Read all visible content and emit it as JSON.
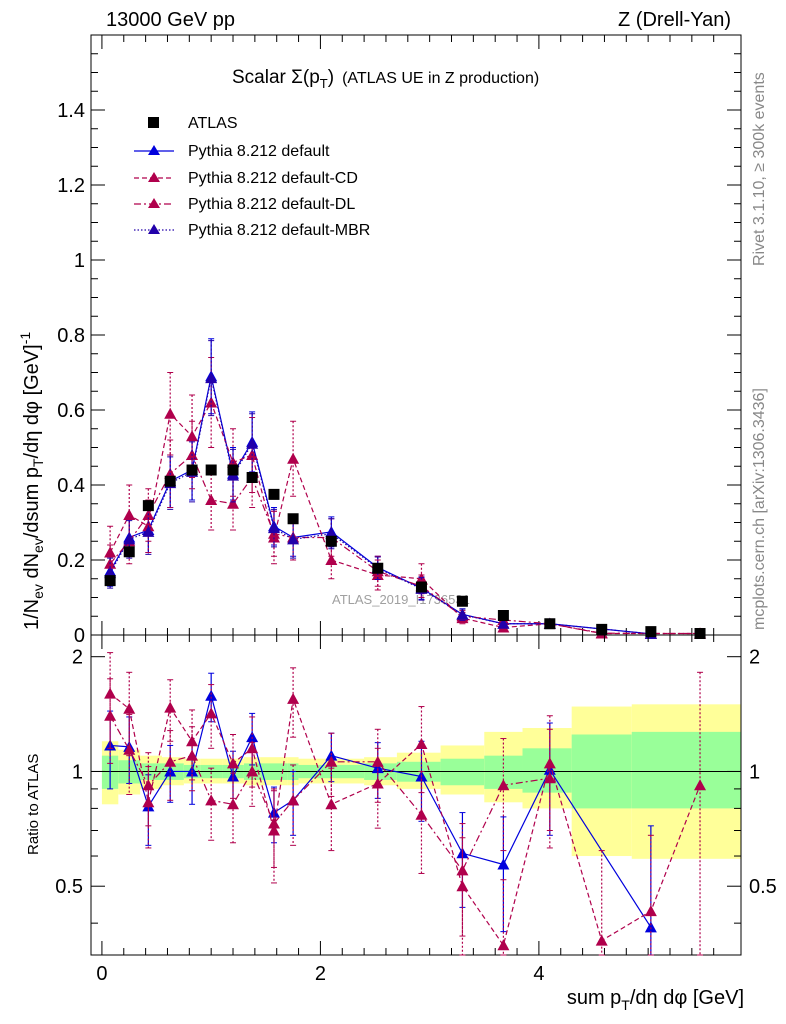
{
  "header": {
    "left": "13000 GeV pp",
    "right": "Z (Drell-Yan)"
  },
  "side": {
    "rivet": "Rivet 3.1.10, ≥ 300k events",
    "mcplots": "mcplots.cern.ch [arXiv:1306.3436]"
  },
  "watermark": "ATLAS_2019_I1736531",
  "colors": {
    "atlas": "#000000",
    "default": "#0000dd",
    "cd": "#b0004c",
    "dl": "#b0004c",
    "mbr": "#2200aa",
    "band_green": "#99ff99",
    "band_yellow": "#ffff99"
  },
  "chart_data": [
    {
      "type": "line",
      "title_main": "Scalar Σ(p",
      "title_sub": "T",
      "title_close": ")",
      "title_extra": "(ATLAS UE in Z production)",
      "ylabel": "1/N_ev dN_ev/dsum p_T/dη dφ [GeV]^-1",
      "ylabel_parts": {
        "p1": "1/N",
        "s1": "ev",
        "p2": " dN",
        "s2": "ev",
        "p3": "/dsum p",
        "s3": "T",
        "p4": "/dη dφ  [GeV]",
        "sup": "-1"
      },
      "xlim": [
        -0.1,
        5.85
      ],
      "ylim": [
        0,
        1.6
      ],
      "yticks": [
        0,
        0.2,
        0.4,
        0.6,
        0.8,
        1,
        1.2,
        1.4
      ],
      "ytick_labels": [
        "0",
        "0.2",
        "0.4",
        "0.6",
        "0.8",
        "1",
        "1.2",
        "1.4"
      ],
      "x": [
        0.075,
        0.25,
        0.425,
        0.625,
        0.825,
        1.0,
        1.2,
        1.375,
        1.575,
        1.75,
        2.1,
        2.525,
        2.925,
        3.3,
        3.675,
        4.1,
        4.575,
        5.025,
        5.475
      ],
      "legend": {
        "atlas": "ATLAS",
        "default": "Pythia 8.212 default",
        "cd": "Pythia 8.212 default-CD",
        "dl": "Pythia 8.212 default-DL",
        "mbr": "Pythia 8.212 default-MBR"
      },
      "series": [
        {
          "name": "ATLAS",
          "values": [
            0.145,
            0.222,
            0.345,
            0.41,
            0.44,
            0.44,
            0.44,
            0.42,
            0.375,
            0.31,
            0.25,
            0.178,
            0.128,
            0.09,
            0.052,
            0.03,
            0.015,
            0.009,
            0.004
          ],
          "errors": [
            0.01,
            0.01,
            0.012,
            0.012,
            0.012,
            0.012,
            0.012,
            0.012,
            0.012,
            0.01,
            0.01,
            0.008,
            0.006,
            0.005,
            0.004,
            0.003,
            0.002,
            0.002,
            0.001
          ]
        },
        {
          "name": "Pythia 8.212 default",
          "values": [
            0.17,
            0.26,
            0.28,
            0.41,
            0.44,
            0.69,
            0.43,
            0.515,
            0.29,
            0.26,
            0.275,
            0.18,
            0.125,
            0.055,
            0.03,
            0.03,
            null,
            0.003,
            null
          ],
          "errors": [
            0.04,
            0.05,
            0.06,
            0.07,
            0.08,
            0.1,
            0.07,
            0.08,
            0.05,
            0.05,
            0.04,
            0.03,
            0.03,
            0.015,
            0.01,
            0.01,
            null,
            0.003,
            null
          ]
        },
        {
          "name": "Pythia 8.212 default-CD",
          "values": [
            0.22,
            0.32,
            0.29,
            0.59,
            0.53,
            0.62,
            0.46,
            0.48,
            0.26,
            0.47,
            0.2,
            0.16,
            0.15,
            0.045,
            0.02,
            0.03,
            0.004,
            0.004,
            0.004
          ],
          "errors": [
            0.07,
            0.08,
            0.07,
            0.11,
            0.11,
            0.12,
            0.09,
            0.1,
            0.07,
            0.1,
            0.05,
            0.04,
            0.04,
            0.015,
            0.01,
            0.01,
            0.004,
            0.004,
            0.004
          ]
        },
        {
          "name": "Pythia 8.212 default-DL",
          "values": [
            0.19,
            0.25,
            0.32,
            0.43,
            0.48,
            0.36,
            0.35,
            0.42,
            0.27,
            0.26,
            0.26,
            0.17,
            0.13,
            0.05,
            0.04,
            0.03,
            0.005,
            0.004,
            0.004
          ],
          "errors": [
            0.05,
            0.06,
            0.07,
            0.09,
            0.09,
            0.08,
            0.07,
            0.08,
            0.06,
            0.06,
            0.05,
            0.04,
            0.03,
            0.015,
            0.012,
            0.01,
            0.004,
            0.003,
            0.003
          ]
        },
        {
          "name": "Pythia 8.212 default-MBR",
          "values": [
            0.165,
            0.255,
            0.275,
            0.405,
            0.435,
            0.685,
            0.425,
            0.51,
            0.285,
            0.255,
            0.27,
            0.178,
            0.123,
            0.054,
            0.03,
            0.03,
            null,
            0.003,
            null
          ],
          "errors": [
            0.04,
            0.05,
            0.06,
            0.07,
            0.08,
            0.1,
            0.07,
            0.08,
            0.05,
            0.05,
            0.04,
            0.03,
            0.03,
            0.015,
            0.01,
            0.01,
            null,
            0.003,
            null
          ]
        }
      ]
    },
    {
      "type": "line",
      "ylabel": "Ratio to ATLAS",
      "xlabel": "sum p_T/dη dφ [GeV]",
      "xlabel_parts": {
        "p1": "sum p",
        "s1": "T",
        "p2": "/dη dφ [GeV]"
      },
      "xlim": [
        -0.1,
        5.85
      ],
      "ylim": [
        0.33,
        2.28
      ],
      "log_y": true,
      "yticks": [
        0.5,
        1,
        2
      ],
      "ytick_labels": [
        "0.5",
        "1",
        "2"
      ],
      "xticks": [
        0,
        2,
        4
      ],
      "xtick_labels": [
        "0",
        "2",
        "4"
      ],
      "bands": {
        "edges": [
          -0.1,
          0.15,
          0.35,
          0.55,
          0.75,
          0.9,
          1.1,
          1.3,
          1.45,
          1.7,
          1.8,
          2.4,
          2.7,
          3.1,
          3.5,
          3.85,
          4.3,
          4.85,
          5.85
        ],
        "stat_lo": [
          0.9,
          0.93,
          0.95,
          0.95,
          0.96,
          0.96,
          0.96,
          0.95,
          0.95,
          0.95,
          0.96,
          0.95,
          0.94,
          0.92,
          0.9,
          0.88,
          0.8,
          0.8
        ],
        "stat_hi": [
          1.1,
          1.07,
          1.05,
          1.05,
          1.04,
          1.04,
          1.04,
          1.05,
          1.05,
          1.05,
          1.04,
          1.05,
          1.06,
          1.08,
          1.1,
          1.15,
          1.25,
          1.27
        ],
        "tot_lo": [
          0.82,
          0.87,
          0.9,
          0.92,
          0.93,
          0.93,
          0.93,
          0.92,
          0.92,
          0.92,
          0.93,
          0.92,
          0.9,
          0.87,
          0.83,
          0.8,
          0.6,
          0.59
        ],
        "tot_hi": [
          1.2,
          1.14,
          1.1,
          1.09,
          1.08,
          1.08,
          1.08,
          1.09,
          1.09,
          1.09,
          1.08,
          1.09,
          1.12,
          1.17,
          1.27,
          1.3,
          1.48,
          1.5
        ]
      },
      "series": [
        {
          "name": "Pythia 8.212 default",
          "values": [
            1.17,
            1.16,
            0.81,
            1.0,
            1.0,
            1.58,
            0.97,
            1.23,
            0.78,
            0.84,
            1.1,
            1.02,
            0.97,
            0.61,
            0.57,
            1.01,
            null,
            0.39,
            null
          ],
          "errors": [
            0.27,
            0.23,
            0.17,
            0.17,
            0.18,
            0.23,
            0.16,
            0.19,
            0.13,
            0.16,
            0.16,
            0.17,
            0.23,
            0.17,
            0.19,
            0.33,
            null,
            0.33,
            null
          ]
        },
        {
          "name": "Pythia 8.212 default-CD",
          "values": [
            1.6,
            1.46,
            0.83,
            1.47,
            1.2,
            1.42,
            1.05,
            1.15,
            0.7,
            1.55,
            0.82,
            0.93,
            1.18,
            0.5,
            0.35,
            1.05,
            0.36,
            0.43,
            0.92
          ],
          "errors": [
            0.45,
            0.36,
            0.2,
            0.27,
            0.25,
            0.27,
            0.2,
            0.24,
            0.19,
            0.32,
            0.2,
            0.22,
            0.3,
            0.17,
            0.17,
            0.35,
            0.26,
            0.25,
            0.9
          ]
        },
        {
          "name": "Pythia 8.212 default-DL",
          "values": [
            1.4,
            1.14,
            0.92,
            1.06,
            1.1,
            0.84,
            0.82,
            1.0,
            0.73,
            0.84,
            1.06,
            1.06,
            0.77,
            0.55,
            0.92,
            0.96,
            null,
            null,
            null
          ],
          "errors": [
            0.35,
            0.27,
            0.2,
            0.22,
            0.21,
            0.18,
            0.17,
            0.19,
            0.17,
            0.2,
            0.2,
            0.23,
            0.23,
            0.18,
            0.3,
            0.33,
            null,
            null,
            null
          ]
        }
      ]
    }
  ]
}
